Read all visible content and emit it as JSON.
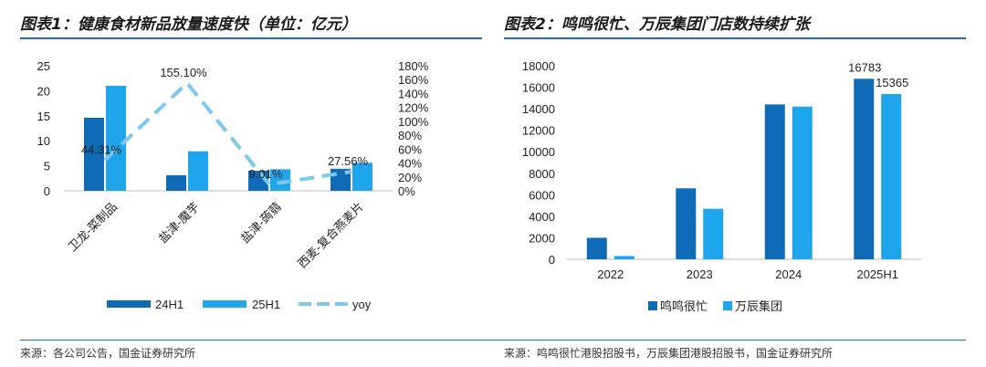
{
  "colors": {
    "dark": "#0f6bb5",
    "light": "#1ea5ec",
    "line": "#7cc8f2",
    "rule": "#1f6fb2"
  },
  "left": {
    "title": "图表1：健康食材新品放量速度快（单位：亿元）",
    "source": "来源：各公司公告，国金证券研究所"
  },
  "right": {
    "title": "图表2：鸣鸣很忙、万辰集团门店数持续扩张",
    "source": "来源：鸣鸣很忙港股招股书，万辰集团港股招股书，国金证券研究所"
  },
  "chart_data": [
    {
      "type": "bar",
      "categories": [
        "卫龙-菜制品",
        "盐津-魔芋",
        "盐津-蒟蒻",
        "西麦-复合燕麦片"
      ],
      "series": [
        {
          "name": "24H1",
          "values": [
            14.6,
            3.1,
            4.0,
            4.4
          ]
        },
        {
          "name": "25H1",
          "values": [
            21.0,
            7.9,
            4.3,
            5.6
          ]
        }
      ],
      "line_series": {
        "name": "yoy",
        "values": [
          44.31,
          155.1,
          9.01,
          27.56
        ],
        "labels": [
          "44.31%",
          "155.10%",
          "9.01%",
          "27.56%"
        ]
      },
      "ylim": [
        0,
        25
      ],
      "yticks": [
        "0",
        "5",
        "10",
        "15",
        "20",
        "25"
      ],
      "y2lim": [
        0,
        180
      ],
      "y2ticks": [
        "0%",
        "20%",
        "40%",
        "60%",
        "80%",
        "100%",
        "120%",
        "140%",
        "160%",
        "180%"
      ],
      "legend": [
        "24H1",
        "25H1",
        "yoy"
      ]
    },
    {
      "type": "bar",
      "categories": [
        "2022",
        "2023",
        "2024",
        "2025H1"
      ],
      "series": [
        {
          "name": "鸣鸣很忙",
          "values": [
            2000,
            6600,
            14400,
            16783
          ]
        },
        {
          "name": "万辰集团",
          "values": [
            300,
            4700,
            14200,
            15365
          ]
        }
      ],
      "data_labels": [
        "16783",
        "15365"
      ],
      "ylim": [
        0,
        18000
      ],
      "yticks": [
        "0",
        "2000",
        "4000",
        "6000",
        "8000",
        "10000",
        "12000",
        "14000",
        "16000",
        "18000"
      ],
      "legend": [
        "鸣鸣很忙",
        "万辰集团"
      ]
    }
  ]
}
